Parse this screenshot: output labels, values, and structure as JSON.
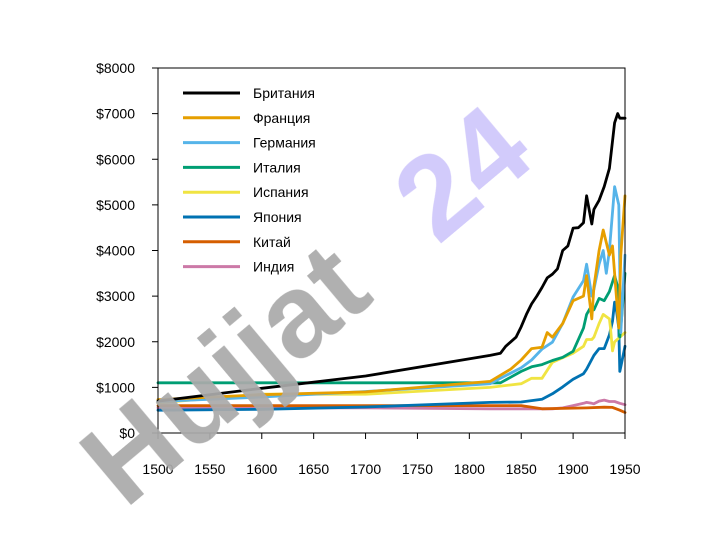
{
  "watermark": {
    "text_gray": "Hujjat",
    "text_purple": "24",
    "color_gray": "#aaaaaa",
    "color_purple": "#cfc7fb"
  },
  "chart_data": {
    "type": "line",
    "title": "",
    "xlabel": "",
    "ylabel": "",
    "xlim": [
      1500,
      1950
    ],
    "ylim": [
      0,
      8000
    ],
    "xticks": [
      "1500",
      "1550",
      "1600",
      "1650",
      "1700",
      "1750",
      "1800",
      "1850",
      "1900",
      "1950"
    ],
    "yticks": [
      "$0",
      "$1000",
      "$2000",
      "$3000",
      "$4000",
      "$5000",
      "$6000",
      "$7000",
      "$8000"
    ],
    "legend_position": "top-left",
    "series": [
      {
        "name": "Британия",
        "color": "#000000",
        "x": [
          1500,
          1600,
          1700,
          1820,
          1830,
          1835,
          1840,
          1845,
          1850,
          1855,
          1860,
          1865,
          1870,
          1875,
          1880,
          1885,
          1890,
          1895,
          1900,
          1905,
          1910,
          1913,
          1918,
          1920,
          1925,
          1930,
          1935,
          1940,
          1943,
          1945,
          1950
        ],
        "y": [
          700,
          980,
          1250,
          1700,
          1750,
          1900,
          2000,
          2100,
          2330,
          2600,
          2830,
          3000,
          3190,
          3400,
          3480,
          3600,
          4000,
          4100,
          4490,
          4500,
          4610,
          5200,
          4580,
          4900,
          5100,
          5400,
          5800,
          6800,
          7000,
          6900,
          6900
        ]
      },
      {
        "name": "Франция",
        "color": "#e69f00",
        "x": [
          1500,
          1600,
          1700,
          1820,
          1840,
          1850,
          1860,
          1870,
          1875,
          1880,
          1890,
          1900,
          1910,
          1913,
          1918,
          1920,
          1925,
          1929,
          1935,
          1938,
          1940,
          1944,
          1946,
          1950
        ],
        "y": [
          730,
          840,
          900,
          1130,
          1400,
          1600,
          1850,
          1880,
          2200,
          2100,
          2400,
          2900,
          3000,
          3450,
          2500,
          3200,
          4000,
          4450,
          3900,
          4100,
          3500,
          2300,
          3900,
          5200
        ]
      },
      {
        "name": "Германия",
        "color": "#56b4e9",
        "x": [
          1500,
          1600,
          1700,
          1820,
          1830,
          1850,
          1860,
          1870,
          1880,
          1890,
          1900,
          1910,
          1913,
          1918,
          1920,
          1925,
          1929,
          1932,
          1935,
          1940,
          1944,
          1945,
          1946,
          1950
        ],
        "y": [
          690,
          790,
          910,
          1080,
          1200,
          1430,
          1600,
          1840,
          1990,
          2400,
          2980,
          3340,
          3700,
          3000,
          3150,
          3700,
          4000,
          3500,
          4000,
          5400,
          5000,
          3500,
          2200,
          3900
        ]
      },
      {
        "name": "Италия",
        "color": "#009e73",
        "x": [
          1500,
          1600,
          1700,
          1820,
          1830,
          1850,
          1860,
          1870,
          1880,
          1890,
          1900,
          1910,
          1913,
          1918,
          1920,
          1925,
          1930,
          1935,
          1940,
          1943,
          1945,
          1947,
          1950
        ],
        "y": [
          1100,
          1100,
          1100,
          1100,
          1100,
          1350,
          1450,
          1500,
          1590,
          1660,
          1790,
          2300,
          2600,
          2800,
          2700,
          2950,
          2900,
          3100,
          3450,
          3200,
          2100,
          2600,
          3500
        ]
      },
      {
        "name": "Испания",
        "color": "#f0e442",
        "x": [
          1500,
          1600,
          1700,
          1820,
          1850,
          1860,
          1870,
          1880,
          1890,
          1900,
          1910,
          1913,
          1918,
          1920,
          1925,
          1929,
          1935,
          1936,
          1938,
          1940,
          1945,
          1950
        ],
        "y": [
          660,
          850,
          850,
          1000,
          1080,
          1200,
          1200,
          1550,
          1650,
          1750,
          1900,
          2050,
          2050,
          2100,
          2400,
          2600,
          2500,
          2300,
          1800,
          2000,
          2100,
          2200
        ]
      },
      {
        "name": "Япония",
        "color": "#0072b2",
        "x": [
          1500,
          1600,
          1700,
          1820,
          1850,
          1870,
          1880,
          1890,
          1900,
          1910,
          1913,
          1920,
          1925,
          1930,
          1935,
          1938,
          1940,
          1942,
          1944,
          1945,
          1946,
          1950
        ],
        "y": [
          500,
          520,
          570,
          670,
          680,
          740,
          860,
          1010,
          1180,
          1300,
          1400,
          1700,
          1850,
          1850,
          2150,
          2450,
          2870,
          2650,
          2300,
          1350,
          1450,
          1900
        ]
      },
      {
        "name": "Китай",
        "color": "#d55e00",
        "x": [
          1500,
          1600,
          1700,
          1820,
          1850,
          1870,
          1890,
          1913,
          1930,
          1938,
          1945,
          1950
        ],
        "y": [
          600,
          600,
          600,
          600,
          600,
          530,
          540,
          550,
          565,
          560,
          500,
          450
        ]
      },
      {
        "name": "Индия",
        "color": "#cc79a7",
        "x": [
          1500,
          1600,
          1700,
          1820,
          1850,
          1870,
          1880,
          1890,
          1900,
          1910,
          1913,
          1918,
          1920,
          1925,
          1930,
          1935,
          1940,
          1945,
          1950
        ],
        "y": [
          550,
          550,
          550,
          530,
          530,
          530,
          530,
          550,
          600,
          650,
          670,
          650,
          640,
          700,
          720,
          690,
          690,
          650,
          620
        ]
      }
    ]
  }
}
